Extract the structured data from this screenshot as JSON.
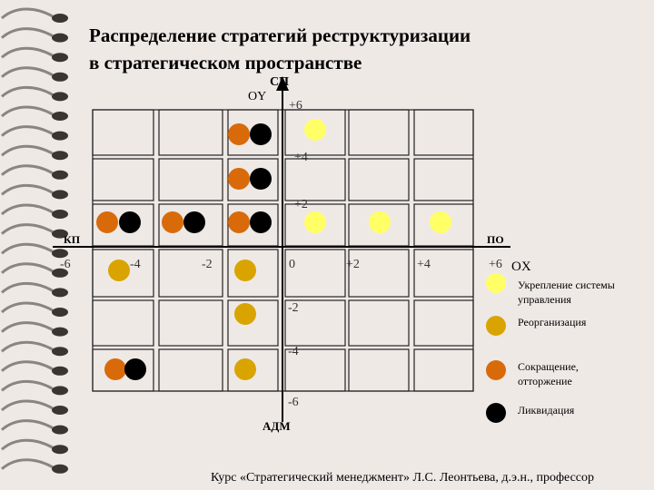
{
  "title_line1": "Распределение стратегий реструктуризации",
  "title_line2": "в стратегическом пространстве",
  "axis": {
    "y_name": "OY",
    "x_name": "OX",
    "top": "СП",
    "bottom": "АДМ",
    "left": "КП",
    "right": "ПО",
    "y_ticks": [
      "+6",
      "+4",
      "+2",
      "-2",
      "-4",
      "-6"
    ],
    "x_ticks": [
      "-6",
      "-4",
      "-2",
      "0",
      "+2",
      "+4",
      "+6"
    ]
  },
  "legend": [
    {
      "label": "Укрепление системы управления",
      "color": "#ffff66",
      "name": "legend-strengthening"
    },
    {
      "label": "Реорганизация",
      "color": "#d9a400",
      "name": "legend-reorganization"
    },
    {
      "label": "Сокращение, отторжение",
      "color": "#d96a0a",
      "name": "legend-reduction"
    },
    {
      "label": "Ликвидация",
      "color": "#000000",
      "name": "legend-liquidation"
    }
  ],
  "footer": "Курс «Стратегический менеджмент» Л.С. Леонтьева, д.э.н., профессор"
}
